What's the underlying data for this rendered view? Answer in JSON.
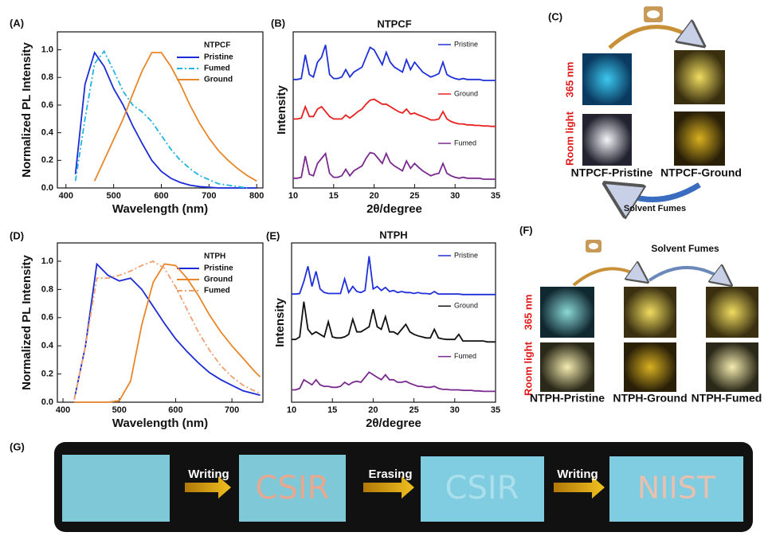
{
  "panel_labels": [
    "(A)",
    "(B)",
    "(C)",
    "(D)",
    "(E)",
    "(F)",
    "(G)"
  ],
  "chart_data": [
    {
      "type": "line",
      "legend_title": "NTPCF",
      "x_label": "Wavelength (nm)",
      "y_label": "Normalized PL Intensity",
      "x": [
        420,
        440,
        460,
        480,
        500,
        520,
        540,
        560,
        580,
        600,
        620,
        640,
        660,
        680,
        700,
        720,
        740,
        760,
        780,
        800
      ],
      "xlim": [
        382,
        813
      ],
      "xticks": [
        400,
        500,
        600,
        700,
        800
      ],
      "ylim": [
        0,
        1.13
      ],
      "yticks": [
        {
          "value": 0,
          "label": "0.0"
        },
        {
          "value": 0.2,
          "label": "0.2"
        },
        {
          "value": 0.4,
          "label": "0.4"
        },
        {
          "value": 0.6,
          "label": "0.6"
        },
        {
          "value": 0.8,
          "label": "0.8"
        },
        {
          "value": 1,
          "label": "1.0"
        }
      ],
      "legend": "upper right",
      "series": [
        {
          "name": "Pristine",
          "color": "#1c2bd6",
          "style": "solid",
          "values": [
            0.1,
            0.75,
            0.98,
            0.88,
            0.72,
            0.6,
            0.45,
            0.32,
            0.2,
            0.12,
            0.07,
            0.04,
            0.02,
            0.01,
            0.005,
            0,
            0,
            0,
            0,
            0
          ]
        },
        {
          "name": "Fumed",
          "color": "#22b4e0",
          "style": "dash-dot",
          "values": [
            0.05,
            0.5,
            0.9,
            0.99,
            0.85,
            0.7,
            0.6,
            0.55,
            0.48,
            0.38,
            0.28,
            0.2,
            0.14,
            0.09,
            0.06,
            0.03,
            0.02,
            0.01,
            0,
            null
          ]
        },
        {
          "name": "Ground",
          "color": "#e8862a",
          "style": "solid",
          "values": [
            null,
            null,
            0.05,
            0.2,
            0.35,
            0.5,
            0.68,
            0.85,
            0.98,
            0.98,
            0.88,
            0.75,
            0.6,
            0.47,
            0.36,
            0.27,
            0.2,
            0.14,
            0.09,
            0.05
          ]
        }
      ]
    },
    {
      "type": "line",
      "stacked": true,
      "title": "NTPCF",
      "x_label": "2θ/degree",
      "y_label": "Intensity",
      "x": [
        10,
        10.5,
        11,
        11.5,
        12,
        12.5,
        13,
        13.5,
        14,
        14.5,
        15,
        15.5,
        16,
        16.5,
        17,
        17.5,
        18,
        18.5,
        19,
        19.5,
        20,
        20.5,
        21,
        21.5,
        22,
        22.5,
        23,
        23.5,
        24,
        24.5,
        25,
        25.5,
        26,
        26.5,
        27,
        27.5,
        28,
        28.5,
        29,
        29.5,
        30,
        30.5,
        31,
        31.5,
        32,
        32.5,
        33,
        33.5,
        34,
        34.5,
        35
      ],
      "xlim": [
        10,
        35
      ],
      "xticks": [
        10,
        15,
        20,
        25,
        30,
        35
      ],
      "series": [
        {
          "name": "Pristine",
          "color": "#2030d8",
          "values": [
            0.1,
            0.1,
            0.12,
            0.6,
            0.2,
            0.15,
            0.45,
            0.55,
            0.8,
            0.2,
            0.12,
            0.12,
            0.15,
            0.3,
            0.15,
            0.25,
            0.3,
            0.35,
            0.55,
            0.75,
            0.7,
            0.55,
            0.4,
            0.65,
            0.45,
            0.35,
            0.3,
            0.25,
            0.5,
            0.3,
            0.45,
            0.35,
            0.25,
            0.2,
            0.15,
            0.18,
            0.22,
            0.45,
            0.2,
            0.15,
            0.12,
            0.1,
            0.12,
            0.1,
            0.1,
            0.1,
            0.1,
            0.08,
            0.08,
            0.08,
            0.08
          ]
        },
        {
          "name": "Ground",
          "color": "#e82020",
          "values": [
            0.3,
            0.3,
            0.32,
            0.55,
            0.35,
            0.35,
            0.5,
            0.55,
            0.45,
            0.35,
            0.3,
            0.3,
            0.3,
            0.38,
            0.32,
            0.38,
            0.45,
            0.5,
            0.6,
            0.68,
            0.7,
            0.65,
            0.6,
            0.6,
            0.55,
            0.5,
            0.45,
            0.42,
            0.5,
            0.4,
            0.42,
            0.38,
            0.35,
            0.32,
            0.28,
            0.28,
            0.3,
            0.45,
            0.3,
            0.25,
            0.22,
            0.2,
            0.2,
            0.18,
            0.18,
            0.17,
            0.17,
            0.16,
            0.16,
            0.15,
            0.15
          ]
        },
        {
          "name": "Fumed",
          "color": "#7a2a8e",
          "values": [
            0.1,
            0.1,
            0.12,
            0.55,
            0.18,
            0.15,
            0.4,
            0.5,
            0.6,
            0.2,
            0.12,
            0.12,
            0.15,
            0.28,
            0.15,
            0.25,
            0.3,
            0.35,
            0.5,
            0.62,
            0.6,
            0.5,
            0.4,
            0.6,
            0.42,
            0.35,
            0.3,
            0.25,
            0.45,
            0.3,
            0.4,
            0.32,
            0.25,
            0.2,
            0.15,
            0.18,
            0.2,
            0.4,
            0.2,
            0.15,
            0.12,
            0.1,
            0.12,
            0.1,
            0.1,
            0.1,
            0.1,
            0.08,
            0.08,
            0.08,
            0.08
          ]
        }
      ]
    },
    {
      "type": "line",
      "legend_title": "NTPH",
      "x_label": "Wavelength (nm)",
      "y_label": "Normalized PL Intensity",
      "x": [
        420,
        440,
        460,
        480,
        500,
        520,
        540,
        560,
        580,
        600,
        620,
        640,
        660,
        680,
        700,
        720,
        740,
        750
      ],
      "xlim": [
        390,
        755
      ],
      "xticks": [
        400,
        500,
        600,
        700
      ],
      "ylim": [
        0,
        1.13
      ],
      "yticks": [
        {
          "value": 0,
          "label": "0.0"
        },
        {
          "value": 0.2,
          "label": "0.2"
        },
        {
          "value": 0.4,
          "label": "0.4"
        },
        {
          "value": 0.6,
          "label": "0.6"
        },
        {
          "value": 0.8,
          "label": "0.8"
        },
        {
          "value": 1,
          "label": "1.0"
        }
      ],
      "legend": "upper right",
      "series": [
        {
          "name": "Pristine",
          "color": "#1c2bd6",
          "style": "solid",
          "values": [
            0.02,
            0.4,
            0.98,
            0.9,
            0.86,
            0.88,
            0.8,
            0.68,
            0.56,
            0.45,
            0.36,
            0.28,
            0.21,
            0.16,
            0.12,
            0.08,
            0.06,
            0.05
          ]
        },
        {
          "name": "Ground",
          "color": "#e8862a",
          "style": "solid",
          "values": [
            0,
            0,
            0,
            0,
            0.01,
            0.15,
            0.55,
            0.85,
            0.98,
            0.97,
            0.88,
            0.76,
            0.62,
            0.5,
            0.4,
            0.31,
            0.22,
            0.18
          ]
        },
        {
          "name": "Fumed",
          "color": "#f0a070",
          "style": "dash-dot",
          "values": [
            0.02,
            0.4,
            0.88,
            0.88,
            0.9,
            0.93,
            0.97,
            1.0,
            0.95,
            0.82,
            0.66,
            0.5,
            0.37,
            0.26,
            0.18,
            0.12,
            0.08,
            0.06
          ]
        }
      ]
    },
    {
      "type": "line",
      "stacked": true,
      "title": "NTPH",
      "x_label": "2θ/degree",
      "y_label": "Intensity",
      "x": [
        10,
        10.5,
        11,
        11.5,
        12,
        12.5,
        13,
        13.5,
        14,
        14.5,
        15,
        15.5,
        16,
        16.5,
        17,
        17.5,
        18,
        18.5,
        19,
        19.5,
        20,
        20.5,
        21,
        21.5,
        22,
        22.5,
        23,
        23.5,
        24,
        24.5,
        25,
        25.5,
        26,
        26.5,
        27,
        27.5,
        28,
        28.5,
        29,
        29.5,
        30,
        30.5,
        31,
        31.5,
        32,
        32.5,
        33,
        33.5,
        34,
        34.5,
        35
      ],
      "xlim": [
        10,
        35
      ],
      "xticks": [
        10,
        15,
        20,
        25,
        30,
        35
      ],
      "series": [
        {
          "name": "Pristine",
          "color": "#2030d8",
          "values": [
            0.05,
            0.05,
            0.06,
            0.3,
            0.6,
            0.2,
            0.5,
            0.15,
            0.08,
            0.06,
            0.06,
            0.06,
            0.06,
            0.35,
            0.08,
            0.2,
            0.1,
            0.08,
            0.12,
            0.8,
            0.15,
            0.2,
            0.12,
            0.18,
            0.1,
            0.12,
            0.08,
            0.1,
            0.08,
            0.08,
            0.06,
            0.08,
            0.06,
            0.06,
            0.05,
            0.1,
            0.05,
            0.05,
            0.05,
            0.05,
            0.05,
            0.05,
            0.04,
            0.04,
            0.04,
            0.04,
            0.04,
            0.04,
            0.04,
            0.04,
            0.04
          ]
        },
        {
          "name": "Ground",
          "color": "#111111",
          "values": [
            0.15,
            0.15,
            0.2,
            0.9,
            0.35,
            0.25,
            0.3,
            0.25,
            0.2,
            0.5,
            0.2,
            0.18,
            0.18,
            0.2,
            0.25,
            0.55,
            0.3,
            0.3,
            0.35,
            0.4,
            0.75,
            0.4,
            0.35,
            0.6,
            0.3,
            0.3,
            0.25,
            0.35,
            0.45,
            0.3,
            0.25,
            0.22,
            0.2,
            0.18,
            0.18,
            0.35,
            0.18,
            0.16,
            0.15,
            0.15,
            0.15,
            0.25,
            0.12,
            0.12,
            0.12,
            0.12,
            0.12,
            0.12,
            0.1,
            0.1,
            0.1
          ]
        },
        {
          "name": "Fumed",
          "color": "#7a2a8e",
          "values": [
            0.15,
            0.15,
            0.18,
            0.35,
            0.3,
            0.25,
            0.35,
            0.25,
            0.22,
            0.22,
            0.2,
            0.2,
            0.22,
            0.3,
            0.25,
            0.3,
            0.32,
            0.3,
            0.4,
            0.5,
            0.45,
            0.4,
            0.35,
            0.45,
            0.35,
            0.35,
            0.3,
            0.3,
            0.32,
            0.28,
            0.25,
            0.22,
            0.22,
            0.2,
            0.2,
            0.22,
            0.18,
            0.16,
            0.16,
            0.15,
            0.15,
            0.15,
            0.14,
            0.14,
            0.14,
            0.13,
            0.13,
            0.12,
            0.12,
            0.12,
            0.12
          ]
        }
      ]
    }
  ],
  "diagram_c": {
    "room_light": "Room light",
    "uv": "365 nm",
    "labels": [
      "NTPCF-Pristine",
      "NTPCF-Ground"
    ],
    "arrow_label": "Solvent Fumes"
  },
  "diagram_f": {
    "room_light": "Room light",
    "uv": "365 nm",
    "arrow_label": "Solvent Fumes",
    "labels": [
      "NTPH-Pristine",
      "NTPH-Ground",
      "NTPH-Fumed"
    ]
  },
  "panel_g": {
    "steps": [
      "Writing",
      "Erasing",
      "Writing"
    ],
    "written": [
      "CSIR",
      "NIIST"
    ]
  }
}
